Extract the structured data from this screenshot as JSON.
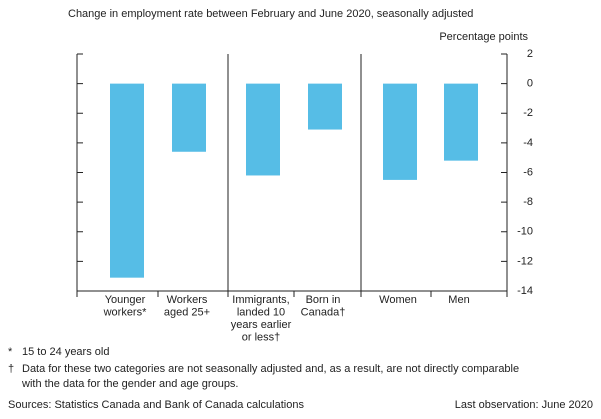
{
  "chart_data": {
    "type": "bar",
    "subtitle": "Change in employment rate between February and June 2020, seasonally adjusted",
    "y_axis_label": "Percentage points",
    "categories": [
      [
        "Younger",
        "workers*"
      ],
      [
        "Workers",
        "aged 25+"
      ],
      [
        "Immigrants,",
        "landed 10",
        "years earlier",
        "or less†"
      ],
      [
        "Born in",
        "Canada†"
      ],
      [
        "Women"
      ],
      [
        "Men"
      ]
    ],
    "values": [
      -13.1,
      -4.6,
      -6.2,
      -3.1,
      -6.5,
      -5.2
    ],
    "color": "#56bde6",
    "ylim": [
      -14,
      2
    ],
    "yticks": [
      2,
      0,
      -2,
      -4,
      -6,
      -8,
      -10,
      -12,
      -14
    ],
    "notes": [
      {
        "symbol": "*",
        "lines": [
          "15 to 24 years old"
        ]
      },
      {
        "symbol": "†",
        "lines": [
          "Data for these two categories are not seasonally adjusted and, as a result, are not directly comparable",
          "with the data for the gender and age groups."
        ]
      }
    ],
    "source": "Sources: Statistics Canada and Bank of Canada calculations",
    "last_observation": "Last observation: June 2020"
  }
}
